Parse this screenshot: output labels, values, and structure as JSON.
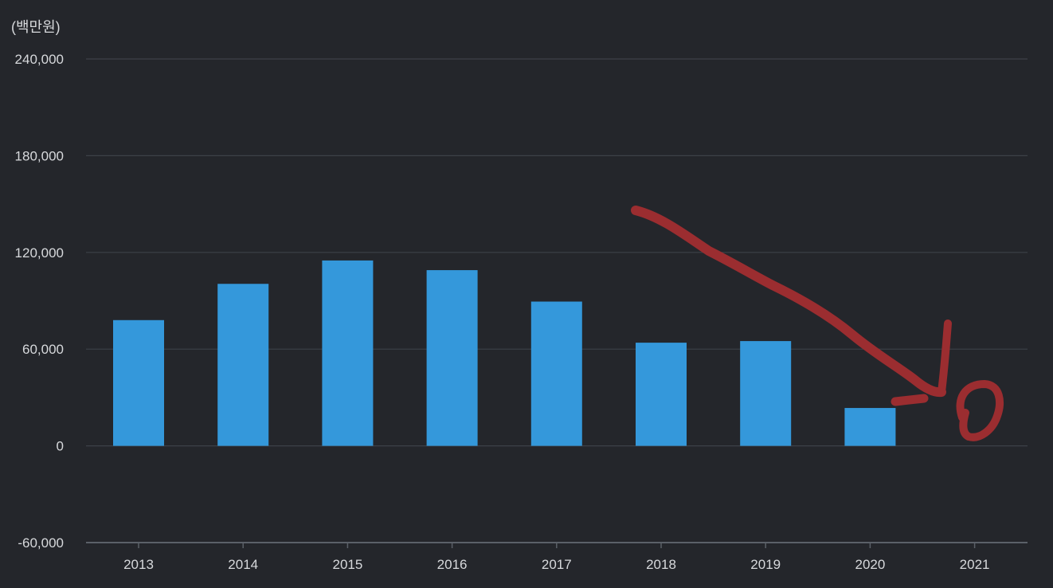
{
  "chart_data": {
    "type": "bar",
    "unit_label": "(백만원)",
    "categories": [
      "2013",
      "2014",
      "2015",
      "2016",
      "2017",
      "2018",
      "2019",
      "2020",
      "2021"
    ],
    "values": [
      78000,
      100500,
      115000,
      109000,
      89500,
      64000,
      65000,
      23500,
      null
    ],
    "ylim": [
      -60000,
      240000
    ],
    "yticks": [
      240000,
      180000,
      120000,
      60000,
      0,
      -60000
    ],
    "ytick_labels": [
      "240,000",
      "180,000",
      "120,000",
      "60,000",
      "0",
      "-60,000"
    ],
    "grid": true,
    "colors": {
      "background": "#24262b",
      "bar": "#3498db",
      "grid": "#3d4148",
      "axis": "#5b6068",
      "text": "#d7d9dc",
      "annotation": "#9b2d30"
    }
  }
}
